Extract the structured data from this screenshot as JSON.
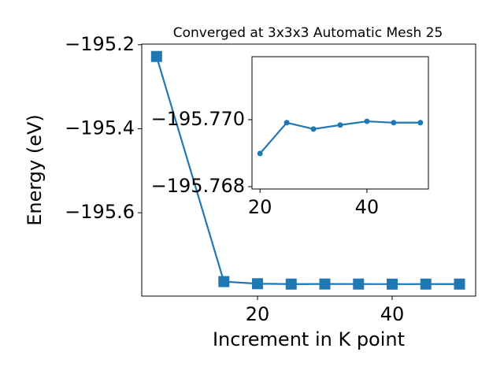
{
  "chart_data": [
    {
      "type": "line",
      "title": "Converged at 3x3x3 Automatic Mesh 25",
      "x_label": "Increment in K point",
      "y_label": "Energy (eV)",
      "x": [
        5,
        15,
        20,
        25,
        30,
        35,
        40,
        45,
        50
      ],
      "series": [
        {
          "color": "#1f77b4",
          "marker": "square",
          "values": [
            -195.228,
            -195.764,
            -195.769,
            -195.7699,
            -195.7697,
            -195.7698,
            -195.77,
            -195.7699,
            -195.7699
          ]
        }
      ],
      "xlim": [
        2.8,
        52.4
      ],
      "ylim": [
        -195.7985,
        -195.1985
      ],
      "xticks": [
        20,
        40
      ],
      "yticks": [
        {
          "value": -195.2,
          "label": "−195.2"
        },
        {
          "value": -195.4,
          "label": "−195.4"
        },
        {
          "value": -195.6,
          "label": "−195.6"
        }
      ]
    },
    {
      "type": "line",
      "x": [
        20,
        25,
        30,
        35,
        40,
        45,
        50
      ],
      "series": [
        {
          "color": "#1f77b4",
          "marker": "circle",
          "values": [
            -195.76899,
            -195.76991,
            -195.76972,
            -195.76984,
            -195.76995,
            -195.76991,
            -195.76991
          ]
        }
      ],
      "xlim": [
        18.5,
        51.5
      ],
      "ylim": [
        -195.76793,
        -195.77188
      ],
      "xticks": [
        20,
        40
      ],
      "yticks": [
        {
          "value": -195.77,
          "label": "−195.770"
        },
        {
          "value": -195.768,
          "label": "−195.768"
        }
      ]
    }
  ]
}
